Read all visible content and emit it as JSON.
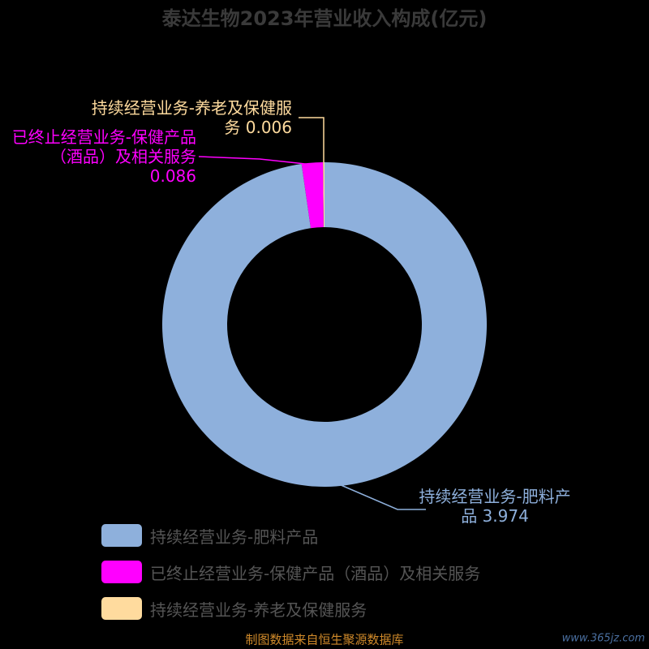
{
  "chart_data": {
    "type": "donut",
    "title": "泰达生物2023年营业收入构成(亿元)",
    "categories": [
      "持续经营业务-肥料产品",
      "已终止经营业务-保健产品（酒品）及相关服务",
      "持续经营业务-养老及保健服务"
    ],
    "values": [
      3.974,
      0.086,
      0.006
    ],
    "colors": [
      "#8eb0dc",
      "#ff00ff",
      "#ffdb9e"
    ],
    "source": "制图数据来自恒生聚源数据库",
    "watermark": "www.365jz.com"
  }
}
